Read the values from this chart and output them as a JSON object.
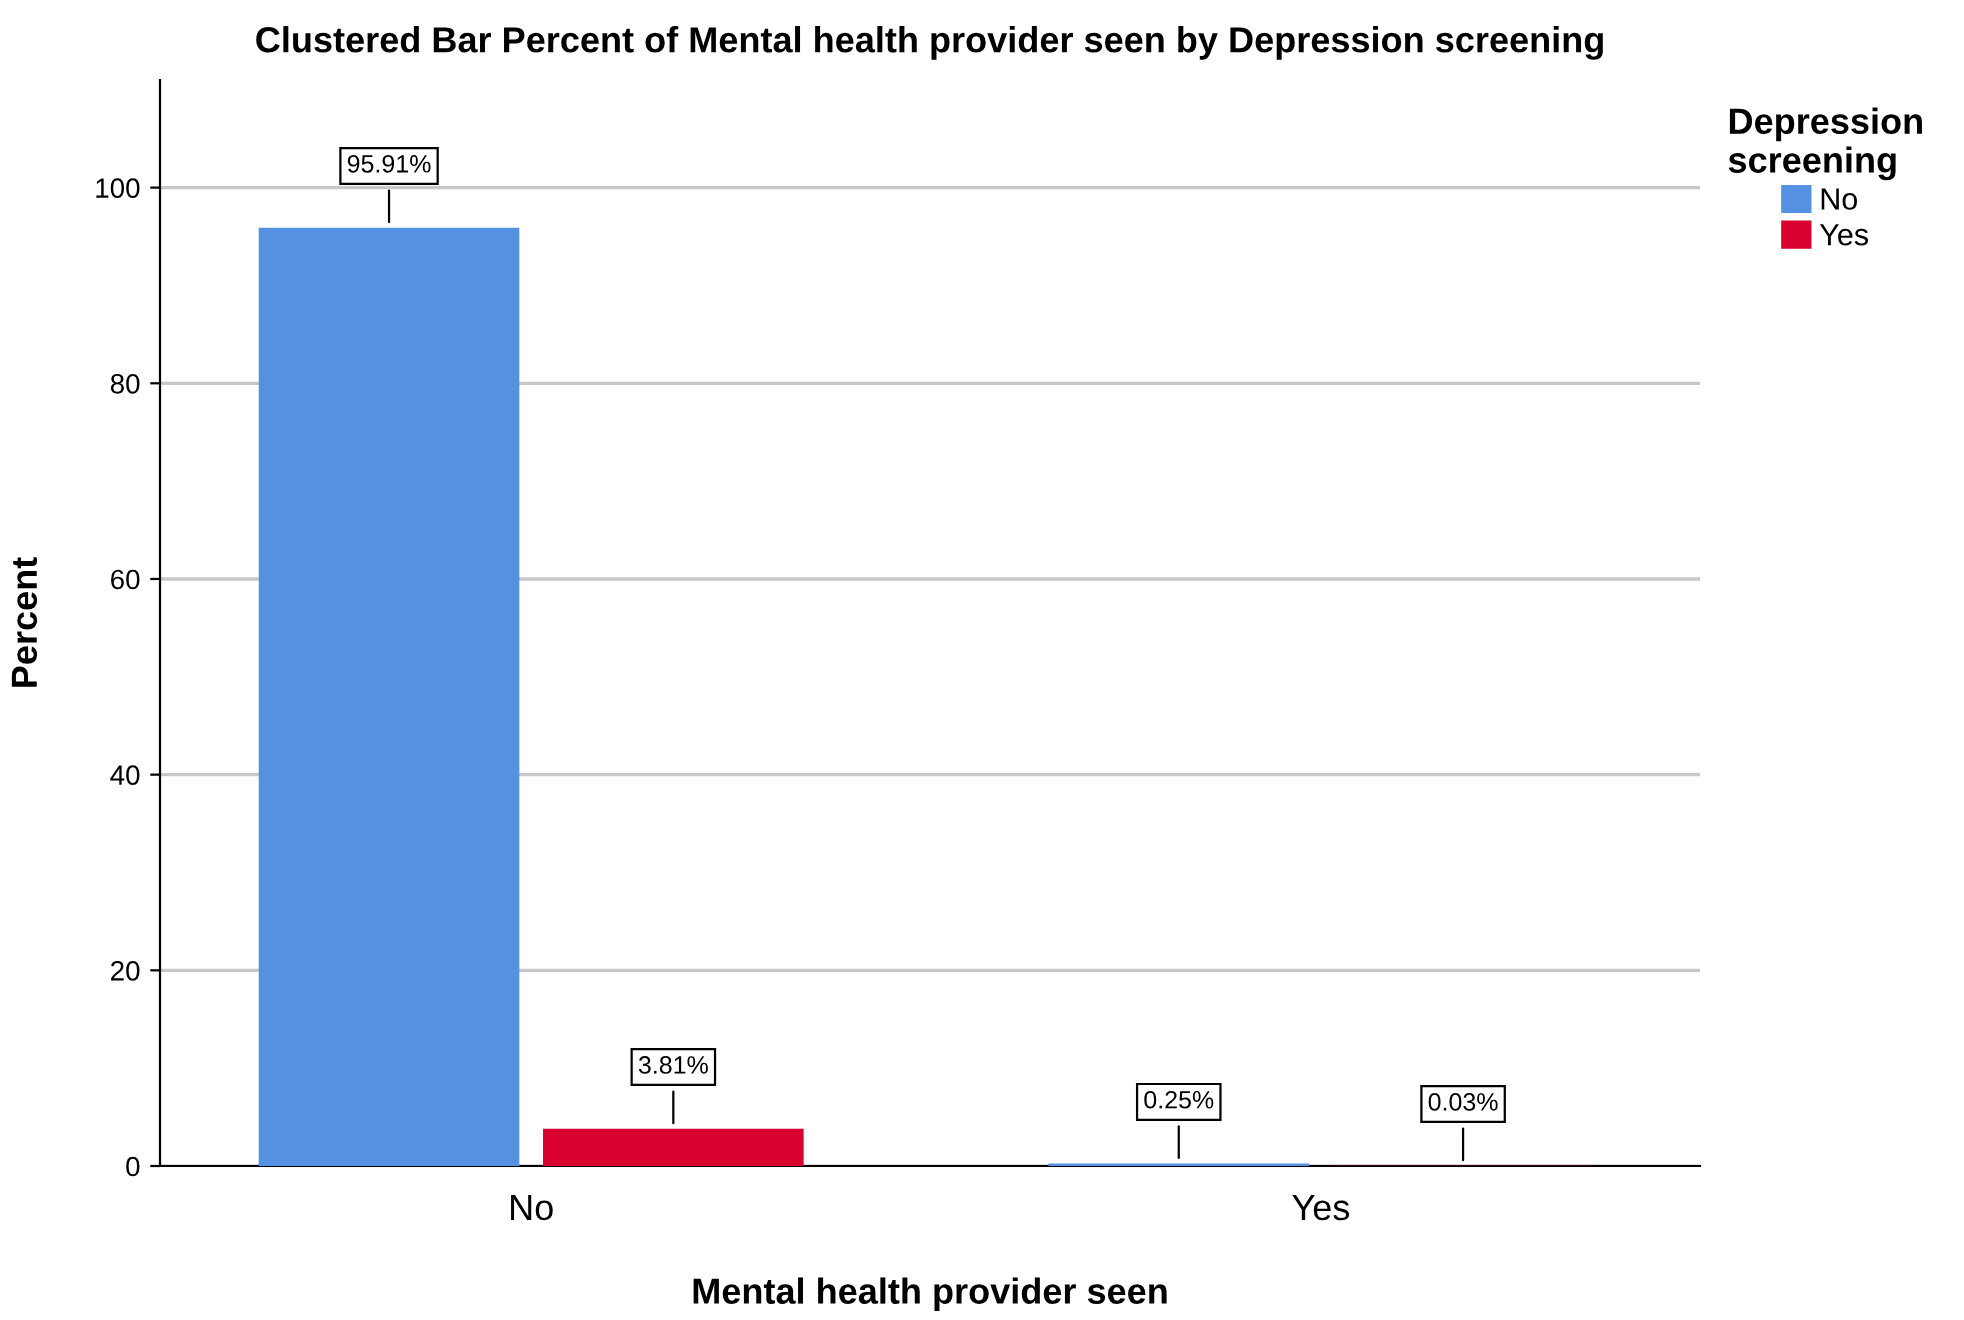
{
  "chart_data": {
    "type": "bar",
    "title": "Clustered Bar Percent of Mental health provider seen by Depression screening",
    "xlabel": "Mental health provider seen",
    "ylabel": "Percent",
    "legend_title": "Depression\nscreening",
    "categories": [
      "No",
      "Yes"
    ],
    "series": [
      {
        "name": "No",
        "color": "#5591e1",
        "values": [
          95.91,
          0.25
        ],
        "value_labels": [
          "95.91%",
          "0.25%"
        ]
      },
      {
        "name": "Yes",
        "color": "#d7002f",
        "values": [
          3.81,
          0.03
        ],
        "value_labels": [
          "3.81%",
          "0.03%"
        ]
      }
    ],
    "ylim": [
      0,
      111
    ],
    "yticks": [
      0,
      20,
      40,
      60,
      80,
      100
    ],
    "grid": "y",
    "legend": "top right"
  }
}
